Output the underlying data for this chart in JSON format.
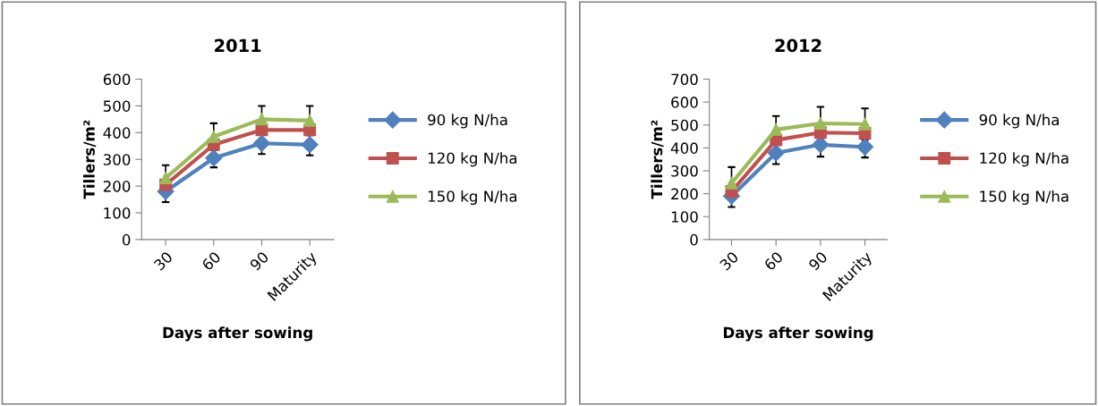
{
  "chart_data": [
    {
      "type": "line",
      "title": "2011",
      "xlabel": "Days after sowing",
      "ylabel": "Tillers/m²",
      "categories": [
        "30",
        "60",
        "90",
        "Maturity"
      ],
      "ylim": [
        0,
        600
      ],
      "yticks": [
        0,
        100,
        200,
        300,
        400,
        500,
        600
      ],
      "grid": false,
      "legend": "right",
      "series": [
        {
          "name": "90 kg N/ha",
          "color": "#4f81bd",
          "marker": "diamond",
          "values": [
            180,
            305,
            360,
            355
          ],
          "errors": [
            40,
            35,
            40,
            40
          ]
        },
        {
          "name": "120 kg N/ha",
          "color": "#c0504d",
          "marker": "square",
          "values": [
            205,
            355,
            410,
            410
          ]
        },
        {
          "name": "150 kg N/ha",
          "color": "#9bbb59",
          "marker": "triangle",
          "values": [
            230,
            385,
            450,
            445
          ],
          "errors": [
            48,
            50,
            50,
            55
          ]
        }
      ]
    },
    {
      "type": "line",
      "title": "2012",
      "xlabel": "Days after sowing",
      "ylabel": "Tillers/m²",
      "categories": [
        "30",
        "60",
        "90",
        "Maturity"
      ],
      "ylim": [
        0,
        700
      ],
      "yticks": [
        0,
        100,
        200,
        300,
        400,
        500,
        600,
        700
      ],
      "grid": false,
      "legend": "right",
      "series": [
        {
          "name": "90 kg N/ha",
          "color": "#4f81bd",
          "marker": "diamond",
          "values": [
            190,
            378,
            414,
            404
          ],
          "errors": [
            48,
            49,
            52,
            46
          ]
        },
        {
          "name": "120 kg N/ha",
          "color": "#c0504d",
          "marker": "square",
          "values": [
            210,
            434,
            467,
            464
          ]
        },
        {
          "name": "150 kg N/ha",
          "color": "#9bbb59",
          "marker": "triangle",
          "values": [
            246,
            480,
            507,
            504
          ],
          "errors": [
            70,
            59,
            72,
            68
          ]
        }
      ]
    }
  ]
}
